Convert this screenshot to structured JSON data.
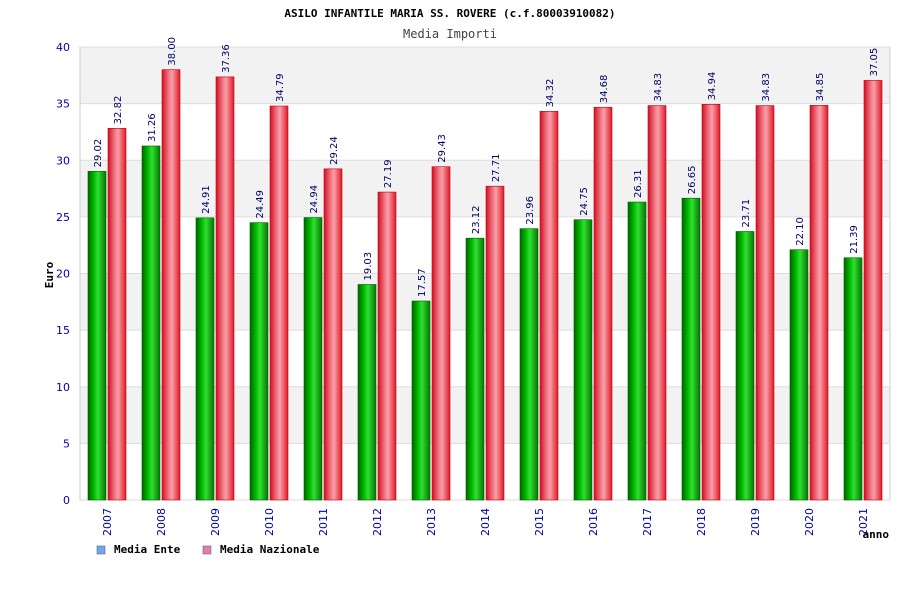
{
  "chart_data": {
    "type": "bar",
    "title": "ASILO INFANTILE MARIA SS. ROVERE (c.f.80003910082)",
    "subtitle": "Media Importi",
    "xlabel": "anno",
    "ylabel": "Euro",
    "ylim": [
      0,
      40
    ],
    "yticks": [
      "0",
      "5",
      "10",
      "15",
      "20",
      "25",
      "30",
      "35",
      "40"
    ],
    "grid": true,
    "legend_position": "bottom-left",
    "categories": [
      "2007",
      "2008",
      "2009",
      "2010",
      "2011",
      "2012",
      "2013",
      "2014",
      "2015",
      "2016",
      "2017",
      "2018",
      "2019",
      "2020",
      "2021"
    ],
    "series": [
      {
        "name": "Media Ente",
        "color": "#00a000",
        "legend_color": "#6fa8f0",
        "values": [
          29.02,
          31.26,
          24.91,
          24.49,
          24.94,
          19.03,
          17.57,
          23.12,
          23.96,
          24.75,
          26.31,
          26.65,
          23.71,
          22.1,
          21.39
        ],
        "labels": [
          "29.02",
          "31.26",
          "24.91",
          "24.49",
          "24.94",
          "19.03",
          "17.57",
          "23.12",
          "23.96",
          "24.75",
          "26.31",
          "26.65",
          "23.71",
          "22.10",
          "21.39"
        ]
      },
      {
        "name": "Media Nazionale",
        "color": "#e01020",
        "legend_color": "#e07fb0",
        "values": [
          32.82,
          38.0,
          37.36,
          34.79,
          29.24,
          27.19,
          29.43,
          27.71,
          34.32,
          34.68,
          34.83,
          34.94,
          34.83,
          34.85,
          37.05
        ],
        "labels": [
          "32.82",
          "38.00",
          "37.36",
          "34.79",
          "29.24",
          "27.19",
          "29.43",
          "27.71",
          "34.32",
          "34.68",
          "34.83",
          "34.94",
          "34.83",
          "34.85",
          "37.05"
        ]
      }
    ]
  }
}
